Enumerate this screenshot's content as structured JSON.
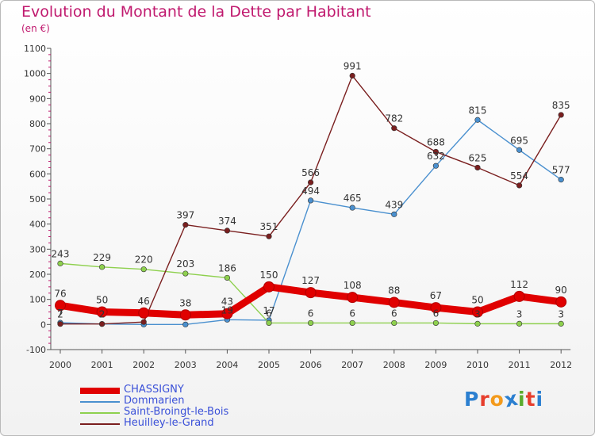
{
  "header": {
    "title": "Evolution du Montant de la Dette par Habitant",
    "subtitle": "(en €)"
  },
  "logo": {
    "text": "Proxiti",
    "colors": [
      "#2b7fd0",
      "#e63e2c",
      "#f39a1c",
      "#2b7fd0",
      "#5aab2d",
      "#e63e2c",
      "#2b7fd0"
    ]
  },
  "chart_data": {
    "type": "line",
    "title": "Evolution du Montant de la Dette par Habitant",
    "subtitle": "(en €)",
    "xlabel": "",
    "ylabel": "",
    "x": [
      "2000",
      "2001",
      "2002",
      "2003",
      "2004",
      "2005",
      "2006",
      "2007",
      "2008",
      "2009",
      "2010",
      "2011",
      "2012"
    ],
    "ylim": [
      -100,
      1100
    ],
    "yticks": [
      -100,
      0,
      100,
      200,
      300,
      400,
      500,
      600,
      700,
      800,
      900,
      1000,
      1100
    ],
    "grid": false,
    "legend_position": "bottom-left",
    "series": [
      {
        "name": "Dommarien",
        "color": "#4a90cf",
        "style": "thin",
        "values": [
          7,
          2,
          0,
          0,
          19,
          17,
          494,
          465,
          439,
          632,
          815,
          695,
          577
        ],
        "labels": [
          "7",
          "2",
          "",
          "",
          "19",
          "17",
          "494",
          "465",
          "439",
          "632",
          "815",
          "695",
          "577"
        ]
      },
      {
        "name": "Saint-Broingt-le-Bois",
        "color": "#8ed04e",
        "style": "thin",
        "values": [
          243,
          229,
          220,
          203,
          186,
          6,
          6,
          6,
          6,
          6,
          3,
          3,
          3
        ],
        "labels": [
          "243",
          "229",
          "220",
          "203",
          "186",
          "6",
          "6",
          "6",
          "6",
          "6",
          "3",
          "3",
          "3"
        ]
      },
      {
        "name": "Heuilley-le-Grand",
        "color": "#7a1f1f",
        "style": "thin",
        "values": [
          2,
          2,
          10,
          397,
          374,
          351,
          566,
          991,
          782,
          688,
          625,
          554,
          835
        ],
        "labels": [
          "2",
          "2",
          "",
          "397",
          "374",
          "351",
          "566",
          "991",
          "782",
          "688",
          "625",
          "554",
          "835"
        ]
      },
      {
        "name": "CHASSIGNY",
        "color": "#e00000",
        "style": "thick",
        "values": [
          76,
          50,
          46,
          38,
          43,
          150,
          127,
          108,
          88,
          67,
          50,
          112,
          90
        ],
        "labels": [
          "76",
          "50",
          "46",
          "38",
          "43",
          "150",
          "127",
          "108",
          "88",
          "67",
          "50",
          "112",
          "90"
        ]
      }
    ],
    "legend_order": [
      "CHASSIGNY",
      "Dommarien",
      "Saint-Broingt-le-Bois",
      "Heuilley-le-Grand"
    ]
  }
}
